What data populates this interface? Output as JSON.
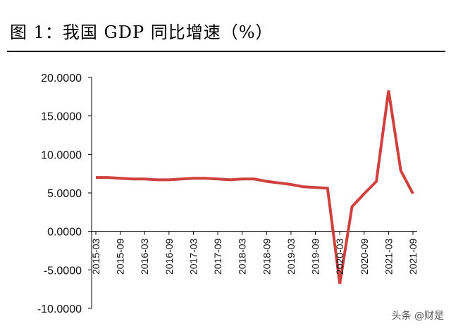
{
  "figure": {
    "title": "图  1：我国 GDP 同比增速（%）"
  },
  "watermark": "头条 @财是",
  "colors": {
    "series": "#d0413e",
    "axis": "#000000"
  },
  "chart_data": {
    "type": "line",
    "title": "图  1：我国 GDP 同比增速（%）",
    "xlabel": "",
    "ylabel": "",
    "ylim": [
      -10,
      20
    ],
    "y_ticks": [
      20,
      15,
      10,
      5,
      0,
      -5,
      -10
    ],
    "y_tick_labels": [
      "20.0000",
      "15.0000",
      "10.0000",
      "5.0000",
      "0.0000",
      "-5.0000",
      "-10.0000"
    ],
    "x_tick_labels": [
      "2015-03",
      "2015-09",
      "2016-03",
      "2016-09",
      "2017-03",
      "2017-09",
      "2018-03",
      "2018-09",
      "2019-03",
      "2019-09",
      "2020-03",
      "2020-09",
      "2021-03",
      "2021-09"
    ],
    "x": [
      "2015-03",
      "2015-06",
      "2015-09",
      "2015-12",
      "2016-03",
      "2016-06",
      "2016-09",
      "2016-12",
      "2017-03",
      "2017-06",
      "2017-09",
      "2017-12",
      "2018-03",
      "2018-06",
      "2018-09",
      "2018-12",
      "2019-03",
      "2019-06",
      "2019-09",
      "2019-12",
      "2020-03",
      "2020-06",
      "2020-09",
      "2020-12",
      "2021-03",
      "2021-06",
      "2021-09"
    ],
    "series": [
      {
        "name": "GDP同比增速",
        "values": [
          7.0,
          7.0,
          6.9,
          6.8,
          6.8,
          6.7,
          6.7,
          6.8,
          6.9,
          6.9,
          6.8,
          6.7,
          6.8,
          6.8,
          6.5,
          6.3,
          6.1,
          5.8,
          5.7,
          5.6,
          -6.8,
          3.2,
          4.9,
          6.5,
          18.3,
          7.9,
          4.9
        ]
      }
    ]
  }
}
